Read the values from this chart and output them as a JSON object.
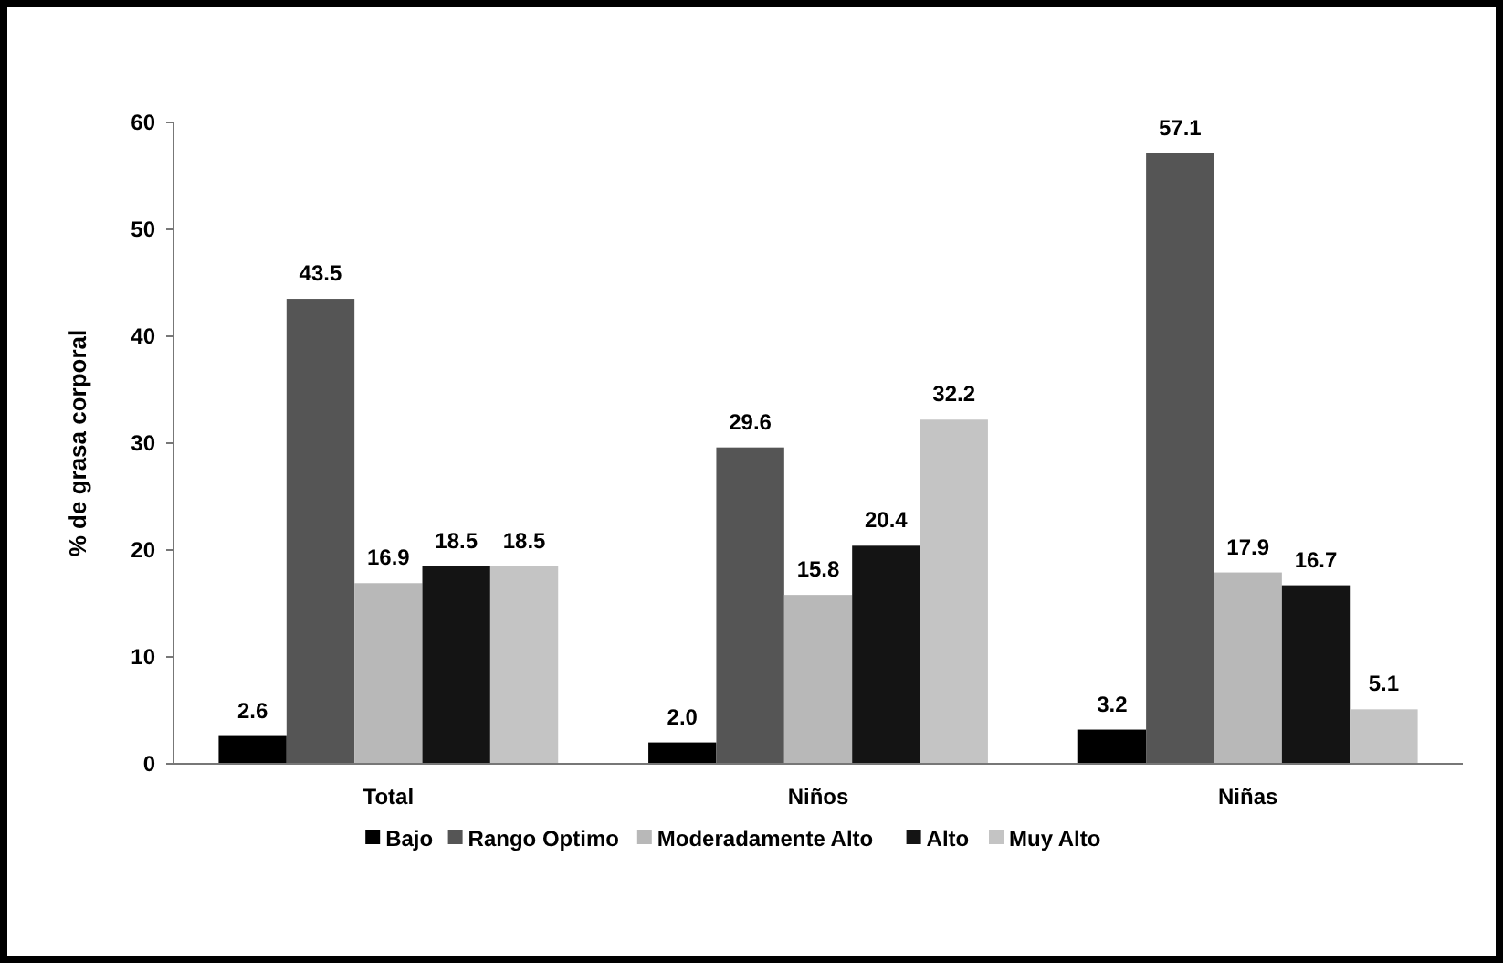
{
  "chart_data": {
    "type": "bar",
    "ylabel": "% de grasa corporal",
    "categories": [
      "Total",
      "Niños",
      "Niñas"
    ],
    "series": [
      {
        "name": "Bajo",
        "color": "#000000",
        "values": [
          2.6,
          2.0,
          3.2
        ],
        "value_labels": [
          "2.6",
          "2.0",
          "3.2"
        ]
      },
      {
        "name": "Rango Optimo",
        "color": "#555555",
        "values": [
          43.5,
          29.6,
          57.1
        ]
      },
      {
        "name": "Moderadamente Alto",
        "color": "#b8b8b8",
        "values": [
          16.9,
          15.8,
          17.9
        ]
      },
      {
        "name": "Alto",
        "color": "#141414",
        "values": [
          18.5,
          20.4,
          16.7
        ]
      },
      {
        "name": "Muy Alto",
        "color": "#c4c4c4",
        "values": [
          18.5,
          32.2,
          5.1
        ]
      }
    ],
    "ylim": [
      0,
      60
    ],
    "yticks": [
      0,
      10,
      20,
      30,
      40,
      50,
      60
    ],
    "data_labels": true,
    "legend": "bottom",
    "grid": false
  }
}
